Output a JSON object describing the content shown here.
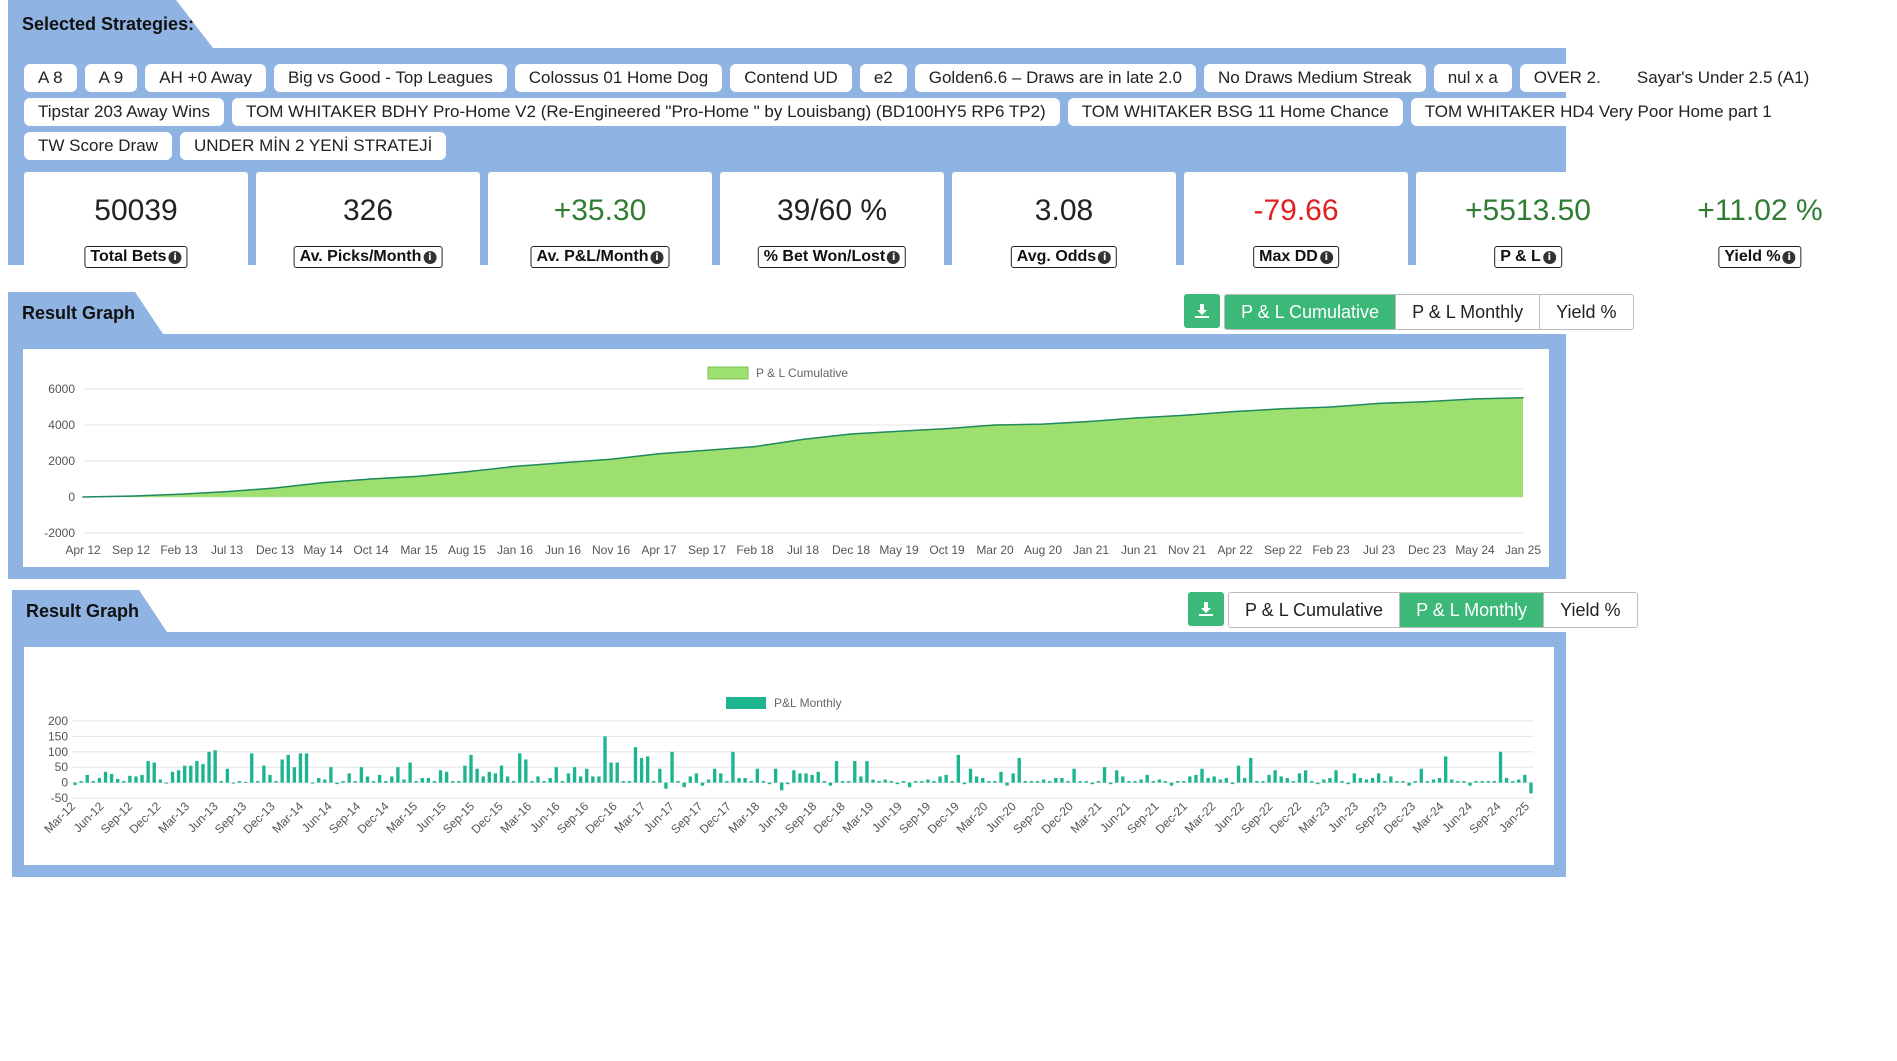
{
  "strategies": {
    "title": "Selected Strategies:",
    "items": [
      "A 8",
      "A 9",
      "AH +0 Away",
      "Big vs Good - Top Leagues",
      "Colossus 01 Home Dog",
      "Contend UD",
      "e2",
      "Golden6.6 – Draws are in late 2.0",
      "No Draws Medium Streak",
      "nul x a",
      "OVER 2.",
      "Sayar's Under 2.5 (A1)",
      "Tipstar 203 Away Wins",
      "TOM WHITAKER BDHY Pro-Home V2 (Re-Engineered \"Pro-Home \" by Louisbang) (BD100HY5 RP6 TP2)",
      "TOM WHITAKER BSG 11 Home Chance",
      "TOM WHITAKER HD4 Very Poor Home part 1",
      "TW Score Draw",
      "UNDER MİN 2 YENİ STRATEJİ"
    ]
  },
  "stats": [
    {
      "value": "50039",
      "label": "Total Bets",
      "tone": "neutral"
    },
    {
      "value": "326",
      "label": "Av. Picks/Month",
      "tone": "neutral"
    },
    {
      "value": "+35.30",
      "label": "Av. P&L/Month",
      "tone": "pos"
    },
    {
      "value": "39/60 %",
      "label": "% Bet Won/Lost",
      "tone": "neutral"
    },
    {
      "value": "3.08",
      "label": "Avg. Odds",
      "tone": "neutral"
    },
    {
      "value": "-79.66",
      "label": "Max DD",
      "tone": "neg"
    },
    {
      "value": "+5513.50",
      "label": "P & L",
      "tone": "pos"
    },
    {
      "value": "+11.02 %",
      "label": "Yield %",
      "tone": "pos"
    }
  ],
  "graph1": {
    "title": "Result Graph",
    "tabs": [
      "P & L Cumulative",
      "P & L Monthly",
      "Yield %"
    ],
    "active": 0,
    "download_icon": "download-icon"
  },
  "graph2": {
    "title": "Result Graph",
    "tabs": [
      "P & L Cumulative",
      "P & L Monthly",
      "Yield %"
    ],
    "active": 1,
    "download_icon": "download-icon"
  },
  "colors": {
    "panel": "#8fb4e3",
    "accent": "#3cb878",
    "area_fill": "#9de070",
    "area_line": "#1f8a5b",
    "bar": "#1cb590",
    "negative": "#e02020",
    "positive": "#2e7d32"
  },
  "chart_data": [
    {
      "type": "area",
      "legend": "P & L Cumulative",
      "ylim": [
        -2000,
        6000
      ],
      "yticks": [
        6000,
        4000,
        2000,
        0,
        -2000
      ],
      "xticks": [
        "Apr 12",
        "Sep 12",
        "Feb 13",
        "Jul 13",
        "Dec 13",
        "May 14",
        "Oct 14",
        "Mar 15",
        "Aug 15",
        "Jan 16",
        "Jun 16",
        "Nov 16",
        "Apr 17",
        "Sep 17",
        "Feb 18",
        "Jul 18",
        "Dec 18",
        "May 19",
        "Oct 19",
        "Mar 20",
        "Aug 20",
        "Jan 21",
        "Jun 21",
        "Nov 21",
        "Apr 22",
        "Sep 22",
        "Feb 23",
        "Jul 23",
        "Dec 23",
        "May 24",
        "Jan 25"
      ],
      "x": [
        "Apr 12",
        "Sep 12",
        "Feb 13",
        "Jul 13",
        "Dec 13",
        "May 14",
        "Oct 14",
        "Mar 15",
        "Aug 15",
        "Jan 16",
        "Jun 16",
        "Nov 16",
        "Apr 17",
        "Sep 17",
        "Feb 18",
        "Jul 18",
        "Dec 18",
        "May 19",
        "Oct 19",
        "Mar 20",
        "Aug 20",
        "Jan 21",
        "Jun 21",
        "Nov 21",
        "Apr 22",
        "Sep 22",
        "Feb 23",
        "Jul 23",
        "Dec 23",
        "May 24",
        "Jan 25"
      ],
      "values": [
        0,
        50,
        150,
        300,
        500,
        800,
        1000,
        1150,
        1400,
        1700,
        1900,
        2100,
        2400,
        2600,
        2800,
        3200,
        3500,
        3650,
        3800,
        4000,
        4050,
        4200,
        4400,
        4550,
        4750,
        4900,
        5000,
        5200,
        5300,
        5450,
        5513
      ]
    },
    {
      "type": "bar",
      "legend": "P&L Monthly",
      "ylim": [
        -50,
        200
      ],
      "yticks": [
        200,
        150,
        100,
        50,
        0,
        -50
      ],
      "xticks": [
        "Mar-12",
        "Jun-12",
        "Sep-12",
        "Dec-12",
        "Mar-13",
        "Jun-13",
        "Sep-13",
        "Dec-13",
        "Mar-14",
        "Jun-14",
        "Sep-14",
        "Dec-14",
        "Mar-15",
        "Jun-15",
        "Sep-15",
        "Dec-15",
        "Mar-16",
        "Jun-16",
        "Sep-16",
        "Dec-16",
        "Mar-17",
        "Jun-17",
        "Sep-17",
        "Dec-17",
        "Mar-18",
        "Jun-18",
        "Sep-18",
        "Dec-18",
        "Mar-19",
        "Jun-19",
        "Sep-19",
        "Dec-19",
        "Mar-20",
        "Jun-20",
        "Sep-20",
        "Dec-20",
        "Mar-21",
        "Jun-21",
        "Sep-21",
        "Dec-21",
        "Mar-22",
        "Jun-22",
        "Sep-22",
        "Dec-22",
        "Mar-23",
        "Jun-23",
        "Sep-23",
        "Dec-23",
        "Mar-24",
        "Jun-24",
        "Sep-24",
        "Jan-25"
      ],
      "values": [
        -8,
        5,
        25,
        5,
        15,
        35,
        28,
        12,
        5,
        22,
        20,
        25,
        70,
        65,
        10,
        -3,
        35,
        40,
        55,
        55,
        70,
        60,
        100,
        105,
        5,
        45,
        -3,
        5,
        2,
        95,
        5,
        55,
        25,
        5,
        75,
        90,
        50,
        95,
        95,
        -3,
        15,
        10,
        50,
        -5,
        5,
        30,
        5,
        50,
        20,
        5,
        25,
        5,
        20,
        50,
        10,
        65,
        5,
        15,
        15,
        5,
        40,
        35,
        5,
        5,
        55,
        90,
        45,
        20,
        35,
        30,
        55,
        20,
        5,
        95,
        75,
        5,
        20,
        5,
        15,
        50,
        5,
        30,
        50,
        20,
        45,
        20,
        20,
        150,
        65,
        65,
        5,
        5,
        115,
        80,
        85,
        5,
        45,
        -20,
        100,
        5,
        -15,
        20,
        30,
        -10,
        10,
        45,
        30,
        5,
        100,
        15,
        15,
        5,
        45,
        5,
        -5,
        45,
        -25,
        -5,
        40,
        30,
        30,
        25,
        35,
        5,
        -10,
        70,
        5,
        5,
        70,
        20,
        70,
        10,
        5,
        10,
        5,
        -5,
        5,
        -15,
        5,
        5,
        10,
        5,
        20,
        25,
        5,
        90,
        -5,
        45,
        20,
        15,
        5,
        5,
        35,
        -10,
        30,
        80,
        5,
        5,
        5,
        10,
        5,
        15,
        15,
        5,
        45,
        5,
        5,
        -5,
        5,
        50,
        -5,
        40,
        20,
        5,
        5,
        10,
        25,
        5,
        10,
        5,
        -10,
        5,
        5,
        20,
        25,
        45,
        15,
        20,
        10,
        15,
        -5,
        55,
        15,
        80,
        5,
        5,
        25,
        40,
        20,
        15,
        5,
        30,
        40,
        5,
        -5,
        10,
        15,
        40,
        5,
        -5,
        30,
        15,
        10,
        15,
        30,
        5,
        20,
        5,
        5,
        -10,
        5,
        45,
        5,
        10,
        15,
        85,
        10,
        5,
        5,
        -10,
        5,
        5,
        5,
        5,
        100,
        15,
        5,
        10,
        25,
        -35
      ]
    }
  ]
}
